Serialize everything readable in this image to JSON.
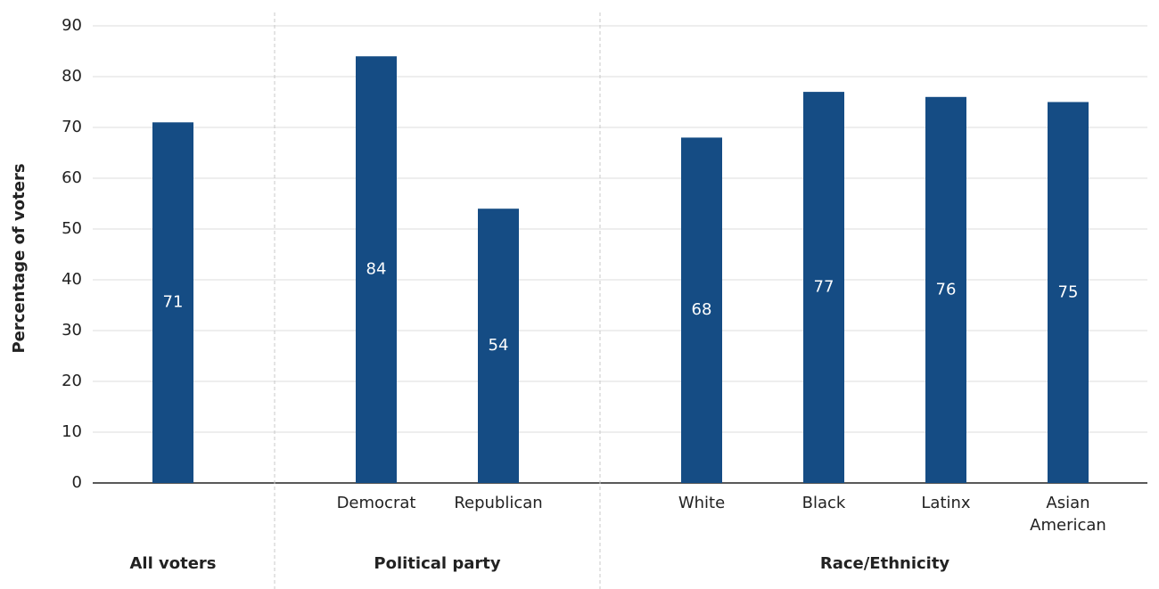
{
  "chart_data": {
    "type": "bar",
    "ylabel": "Percentage of voters",
    "color": "#154c84",
    "ylim": [
      0,
      90
    ],
    "yticks": [
      0,
      10,
      20,
      30,
      40,
      50,
      60,
      70,
      80,
      90
    ],
    "grid": true,
    "groups": [
      {
        "name": "All voters",
        "categories": [
          null
        ],
        "values": [
          71
        ]
      },
      {
        "name": "Political party",
        "categories": [
          "Democrat",
          "Republican"
        ],
        "values": [
          84,
          54
        ]
      },
      {
        "name": "Race/Ethnicity",
        "categories": [
          "White",
          "Black",
          "Latinx",
          "Asian American"
        ],
        "values": [
          68,
          77,
          76,
          75
        ]
      }
    ]
  }
}
